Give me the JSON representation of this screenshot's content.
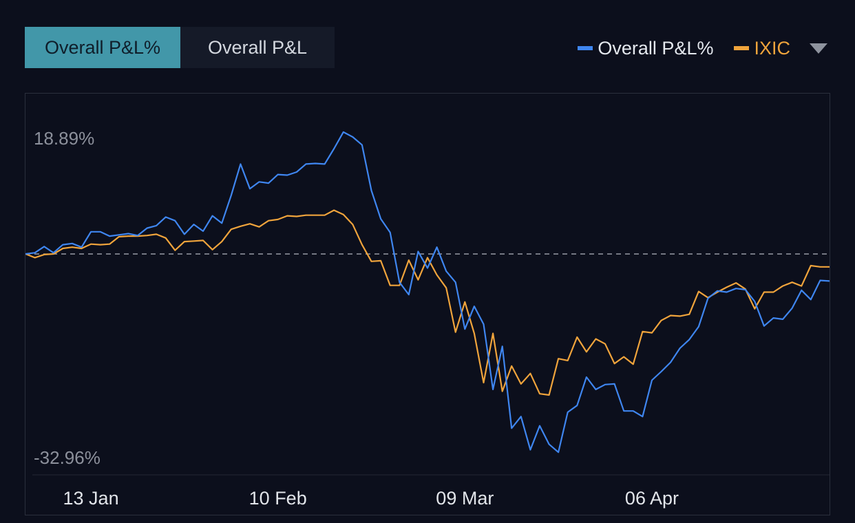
{
  "tabs": [
    {
      "label": "Overall P&L%",
      "active": true
    },
    {
      "label": "Overall P&L",
      "active": false
    }
  ],
  "legend": [
    {
      "label": "Overall P&L%",
      "color": "#3f86f0"
    },
    {
      "label": "IXIC",
      "color": "#f0a43c"
    }
  ],
  "legend_toggle_icon": "caret-down-icon",
  "chart_data": {
    "type": "line",
    "title": "",
    "xlabel": "",
    "ylabel": "",
    "y_top_label": "18.89%",
    "y_bottom_label": "-32.96%",
    "ylim": [
      -32.96,
      18.89
    ],
    "zero_line": {
      "value": 0,
      "style": "dashed"
    },
    "grid": false,
    "legend_position": "top-right",
    "x_tick_labels": [
      "13 Jan",
      "10 Feb",
      "09 Mar",
      "06 Apr"
    ],
    "x_tick_positions": [
      7,
      27,
      47,
      67
    ],
    "series": [
      {
        "name": "Overall P&L%",
        "color": "#3f86f0",
        "values": [
          0,
          0.2,
          1.2,
          0.2,
          1.5,
          1.7,
          1.1,
          3.6,
          3.6,
          2.9,
          3.1,
          3.3,
          3.0,
          4.2,
          4.6,
          6.0,
          5.4,
          3.2,
          4.8,
          3.7,
          6.2,
          5.0,
          9.5,
          14.6,
          10.6,
          11.7,
          11.5,
          12.9,
          12.8,
          13.3,
          14.6,
          14.7,
          14.6,
          17.1,
          19.8,
          19.0,
          17.7,
          10.3,
          5.7,
          3.5,
          -4.6,
          -6.6,
          0.4,
          -2.3,
          1.1,
          -2.8,
          -4.6,
          -12.2,
          -8.5,
          -11.4,
          -22.0,
          -15.0,
          -28.3,
          -26.4,
          -31.8,
          -27.9,
          -30.9,
          -32.2,
          -25.7,
          -24.6,
          -20.0,
          -22.0,
          -21.2,
          -21.1,
          -25.5,
          -25.5,
          -26.4,
          -20.5,
          -19.1,
          -17.6,
          -15.3,
          -13.9,
          -11.8,
          -7.2,
          -6.0,
          -6.2,
          -5.6,
          -5.8,
          -7.7,
          -11.7,
          -10.4,
          -10.6,
          -8.8,
          -5.9,
          -7.4,
          -4.3,
          -4.4
        ],
        "x": [
          0,
          1,
          2,
          3,
          4,
          5,
          6,
          7,
          8,
          9,
          10,
          11,
          12,
          13,
          14,
          15,
          16,
          17,
          18,
          19,
          20,
          21,
          22,
          23,
          24,
          25,
          26,
          27,
          28,
          29,
          30,
          31,
          32,
          33,
          34,
          35,
          36,
          37,
          38,
          39,
          40,
          41,
          42,
          43,
          44,
          45,
          46,
          47,
          48,
          49,
          50,
          51,
          52,
          53,
          54,
          55,
          56,
          57,
          58,
          59,
          60,
          61,
          62,
          63,
          64,
          65,
          66,
          67,
          68,
          69,
          70,
          71,
          72,
          73,
          74,
          75,
          76,
          77,
          78,
          79,
          80,
          81,
          82,
          83,
          84,
          85,
          86
        ]
      },
      {
        "name": "IXIC",
        "color": "#f0a43c",
        "values": [
          0,
          -0.6,
          -0.1,
          0,
          0.9,
          1.1,
          0.9,
          1.6,
          1.5,
          1.6,
          2.8,
          2.9,
          2.9,
          3.0,
          3.2,
          2.6,
          0.6,
          2.0,
          2.1,
          2.2,
          0.7,
          2.0,
          4.0,
          4.5,
          4.9,
          4.4,
          5.4,
          5.6,
          6.2,
          6.1,
          6.3,
          6.3,
          6.3,
          7.1,
          6.4,
          4.8,
          1.5,
          -1.2,
          -1.1,
          -5.1,
          -5.1,
          -1.0,
          -4.2,
          -0.6,
          -3.4,
          -5.5,
          -12.7,
          -7.8,
          -12.9,
          -20.9,
          -12.9,
          -22.3,
          -18.2,
          -21.1,
          -19.4,
          -22.7,
          -22.9,
          -17.0,
          -17.3,
          -13.5,
          -15.9,
          -13.8,
          -14.6,
          -17.8,
          -16.7,
          -17.9,
          -12.6,
          -12.8,
          -10.8,
          -10.0,
          -10.1,
          -9.8,
          -6.1,
          -7.1,
          -6.2,
          -5.4,
          -4.7,
          -5.7,
          -8.9,
          -6.2,
          -6.2,
          -5.2,
          -4.6,
          -5.2,
          -1.9,
          -2.1,
          -2.1
        ],
        "x": [
          0,
          1,
          2,
          3,
          4,
          5,
          6,
          7,
          8,
          9,
          10,
          11,
          12,
          13,
          14,
          15,
          16,
          17,
          18,
          19,
          20,
          21,
          22,
          23,
          24,
          25,
          26,
          27,
          28,
          29,
          30,
          31,
          32,
          33,
          34,
          35,
          36,
          37,
          38,
          39,
          40,
          41,
          42,
          43,
          44,
          45,
          46,
          47,
          48,
          49,
          50,
          51,
          52,
          53,
          54,
          55,
          56,
          57,
          58,
          59,
          60,
          61,
          62,
          63,
          64,
          65,
          66,
          67,
          68,
          69,
          70,
          71,
          72,
          73,
          74,
          75,
          76,
          77,
          78,
          79,
          80,
          81,
          82,
          83,
          84,
          85,
          86
        ]
      }
    ]
  }
}
